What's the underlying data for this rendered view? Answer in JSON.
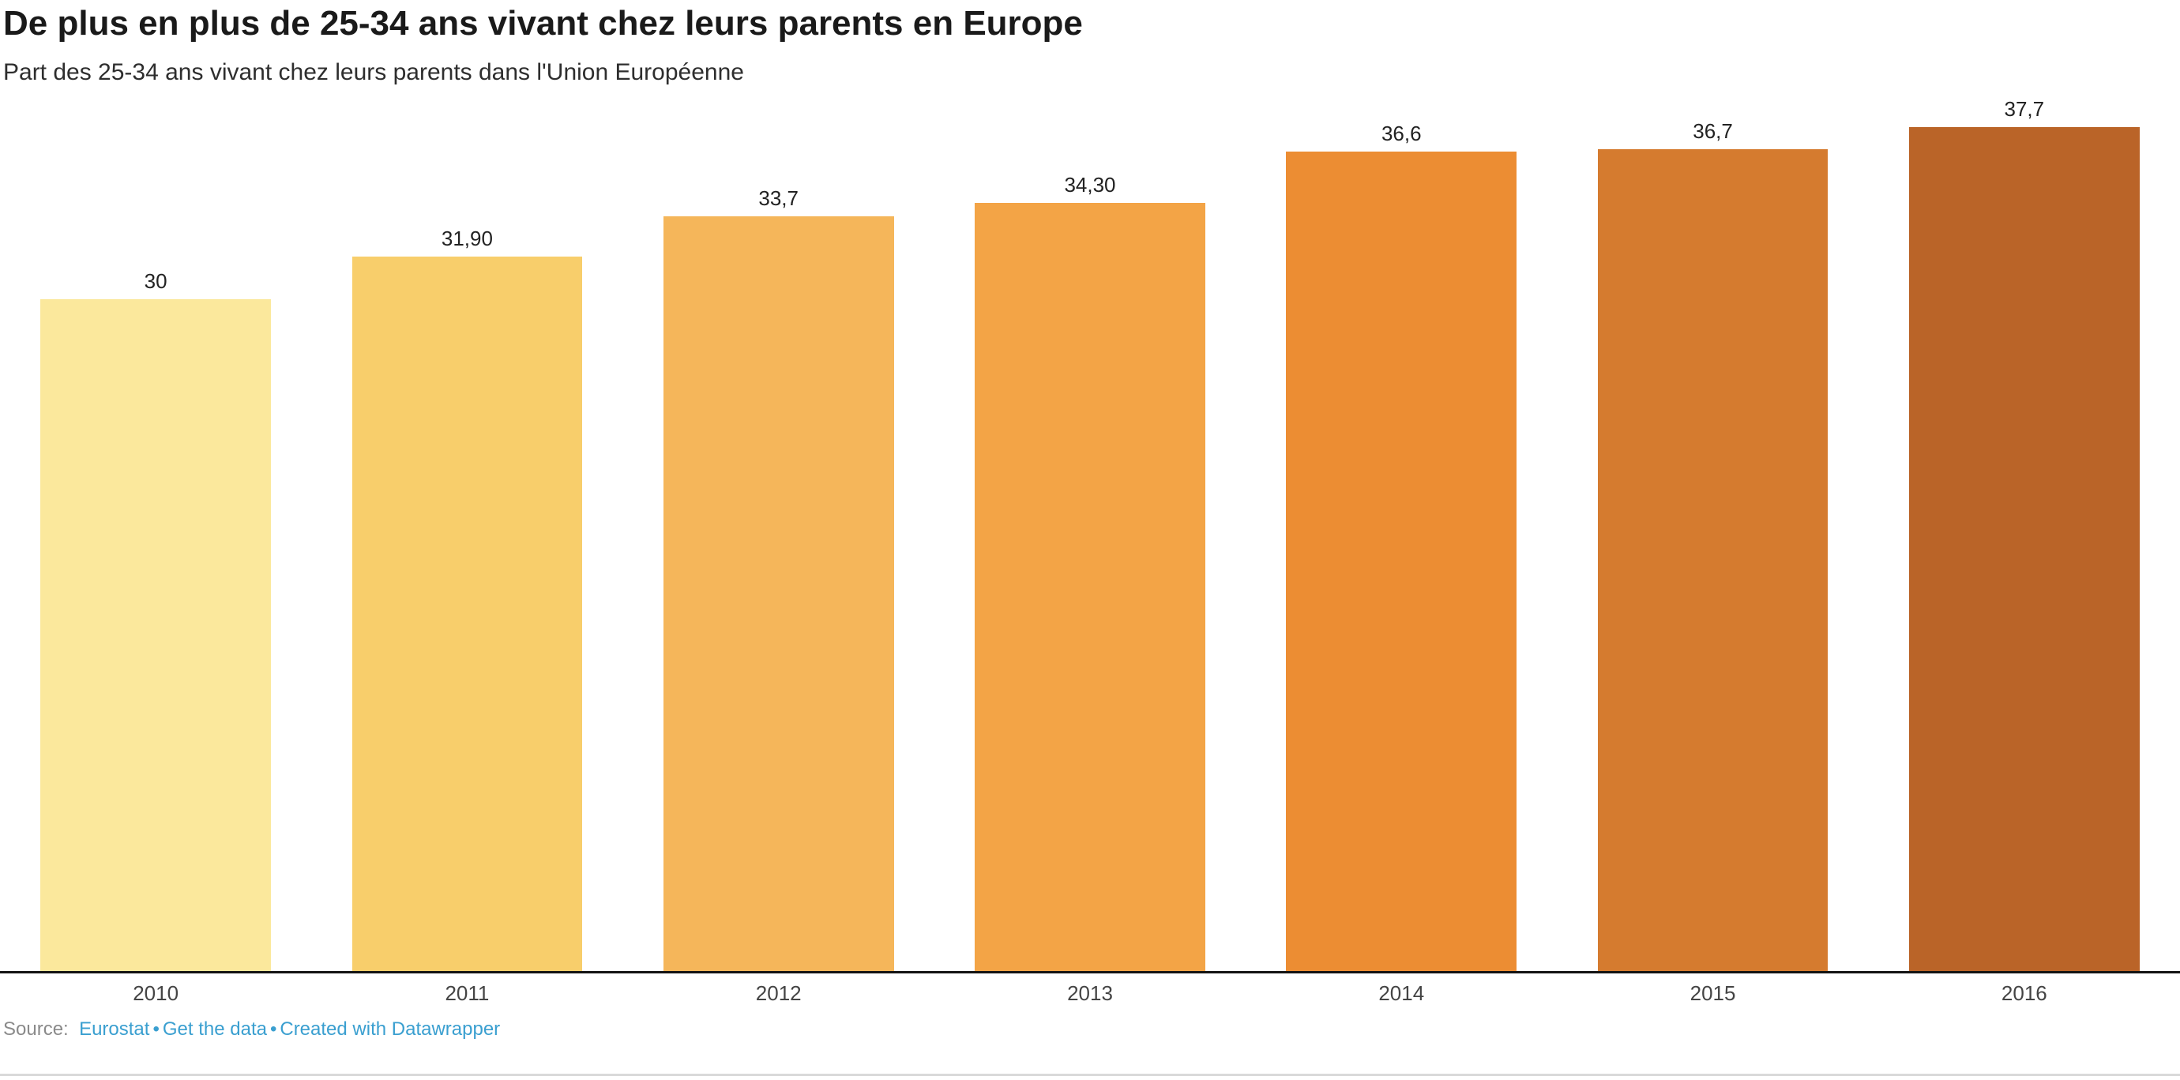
{
  "header": {
    "title": "De plus en plus de 25-34 ans vivant chez leurs parents en Europe",
    "subtitle": "Part des 25-34 ans vivant chez leurs parents dans l'Union Européenne"
  },
  "chart_data": {
    "type": "bar",
    "title": "De plus en plus de 25-34 ans vivant chez leurs parents en Europe",
    "subtitle": "Part des 25-34 ans vivant chez leurs parents dans l'Union Européenne",
    "categories": [
      "2010",
      "2011",
      "2012",
      "2013",
      "2014",
      "2015",
      "2016"
    ],
    "values": [
      30,
      31.9,
      33.7,
      34.3,
      36.6,
      36.7,
      37.7
    ],
    "value_labels": [
      "30",
      "31,90",
      "33,7",
      "34,30",
      "36,6",
      "36,7",
      "37,7"
    ],
    "bar_colors": [
      "#FBE89C",
      "#F8CE6B",
      "#F5B65A",
      "#F3A446",
      "#EC8D33",
      "#D57B2F",
      "#BA6428"
    ],
    "xlabel": "",
    "ylabel": "",
    "ylim": [
      0,
      39
    ],
    "grid": "off",
    "legend": "none",
    "value_labels_position": "above-bars",
    "axis_line_color": "#141414"
  },
  "footer": {
    "source_label": "Source:",
    "separator": "•",
    "links": [
      {
        "label": "Eurostat"
      },
      {
        "label": "Get the data"
      },
      {
        "label": "Created with Datawrapper"
      }
    ],
    "link_color": "#3A9FD0"
  }
}
